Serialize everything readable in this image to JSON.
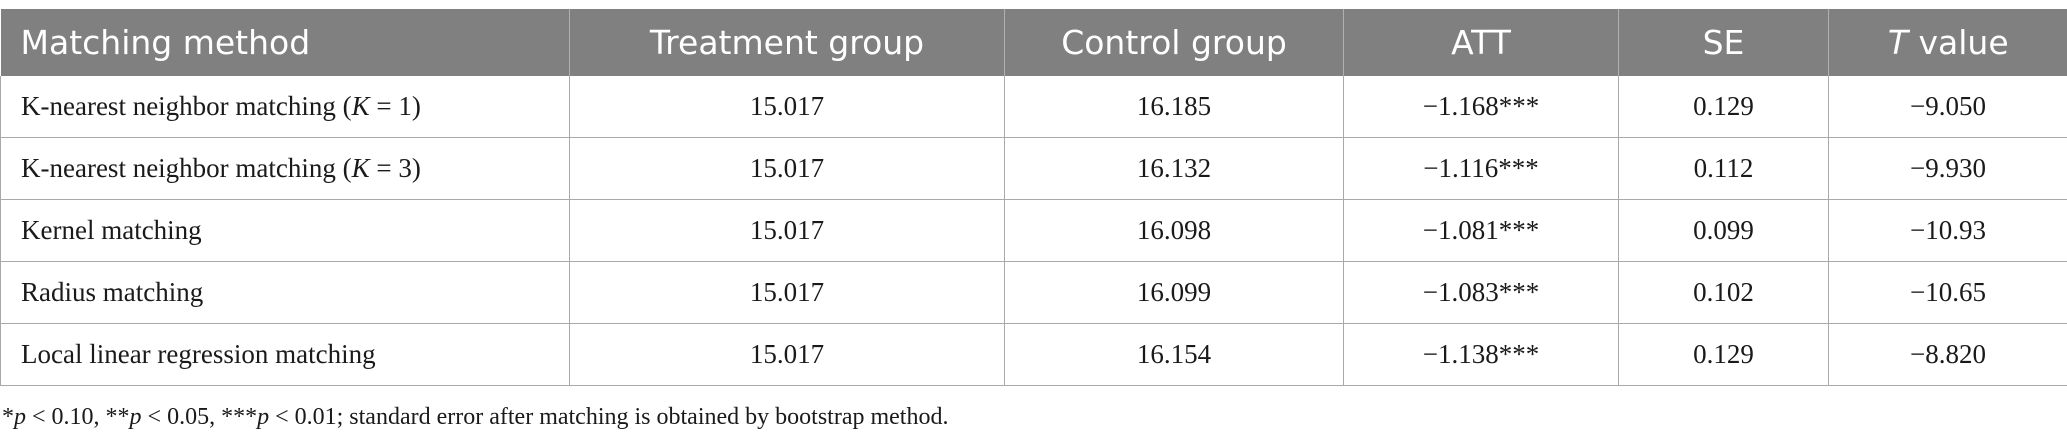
{
  "table": {
    "headers": [
      "Matching method",
      "Treatment group",
      "Control group",
      "ATT",
      "SE",
      "value"
    ],
    "header_italic_prefix_last": "T",
    "rows": [
      {
        "method_prefix": "K-nearest neighbor matching (",
        "method_k": "K",
        "method_suffix": " = 1)",
        "treatment": "15.017",
        "control": "16.185",
        "att": "−1.168***",
        "se": "0.129",
        "t": "−9.050"
      },
      {
        "method_prefix": "K-nearest neighbor matching (",
        "method_k": "K",
        "method_suffix": " = 3)",
        "treatment": "15.017",
        "control": "16.132",
        "att": "−1.116***",
        "se": "0.112",
        "t": "−9.930"
      },
      {
        "method": "Kernel matching",
        "treatment": "15.017",
        "control": "16.098",
        "att": "−1.081***",
        "se": "0.099",
        "t": "−10.93"
      },
      {
        "method": "Radius matching",
        "treatment": "15.017",
        "control": "16.099",
        "att": "−1.083***",
        "se": "0.102",
        "t": "−10.65"
      },
      {
        "method": "Local linear regression matching",
        "treatment": "15.017",
        "control": "16.154",
        "att": "−1.138***",
        "se": "0.129",
        "t": "−8.820"
      }
    ]
  },
  "footnote": {
    "p": "p",
    "part1": "*",
    "part2": " < 0.10, **",
    "part3": " < 0.05, ***",
    "part4": " < 0.01; standard error after matching is obtained by bootstrap method."
  }
}
